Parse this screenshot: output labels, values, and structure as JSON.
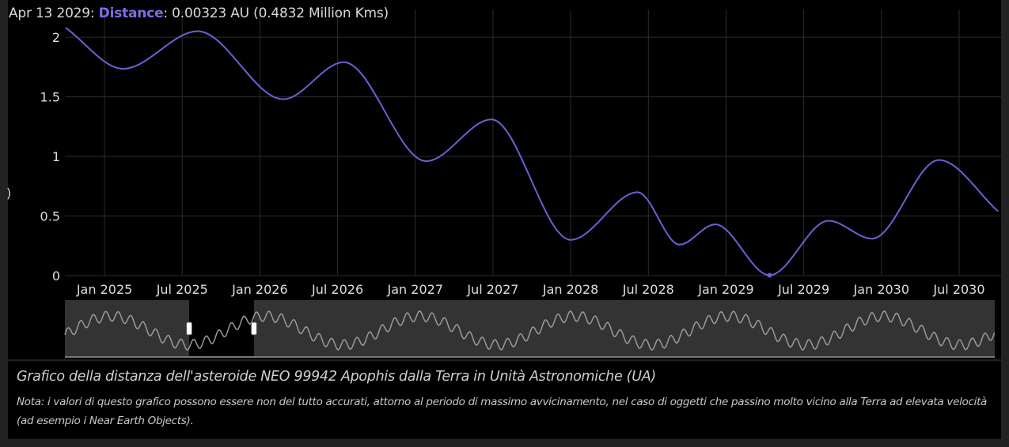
{
  "tooltip": {
    "date": "Apr 13 2029",
    "series_name": "Distance",
    "value_text": ": 0.00323 AU (0.4832 Million Kms)"
  },
  "caption": {
    "title": "Grafico della distanza dell'asteroide NEO 99942 Apophis dalla Terra in Unità Astronomiche (UA)",
    "note": "Nota: i valori di questo grafico possono essere non del tutto accurati, attorno al periodo di massimo avvicinamento, nel caso di oggetti che passino molto vicino alla Terra ad elevata velocità (ad esempio i Near Earth Objects)."
  },
  "colors": {
    "line": "#6f5fd0",
    "navigator_line": "#9a9a9a",
    "grid": "#2c2c2c"
  },
  "chart_data": {
    "type": "line",
    "title": "",
    "xlabel": "",
    "ylabel": ")",
    "xlim": [
      2024.745,
      2030.77
    ],
    "ylim": [
      0,
      2.1
    ],
    "grid": true,
    "yticks": [
      0,
      0.5,
      1,
      1.5,
      2
    ],
    "ytick_labels": [
      "0",
      "0.5",
      "1",
      "1.5",
      "2"
    ],
    "xticks": [
      2025.0,
      2025.5,
      2026.0,
      2026.5,
      2027.0,
      2027.5,
      2028.0,
      2028.5,
      2029.0,
      2029.5,
      2030.0,
      2030.5
    ],
    "xtick_labels": [
      "Jan 2025",
      "Jul 2025",
      "Jan 2026",
      "Jul 2026",
      "Jan 2027",
      "Jul 2027",
      "Jan 2028",
      "Jul 2028",
      "Jan 2029",
      "Jul 2029",
      "Jan 2030",
      "Jul 2030"
    ],
    "series": [
      {
        "name": "Distance",
        "x": [
          2024.75,
          2025.12,
          2025.6,
          2026.15,
          2026.54,
          2027.07,
          2027.49,
          2028.0,
          2028.43,
          2028.7,
          2028.93,
          2029.28,
          2029.66,
          2029.94,
          2030.37,
          2030.75
        ],
        "y": [
          2.08,
          1.735,
          2.05,
          1.48,
          1.79,
          0.96,
          1.31,
          0.3,
          0.7,
          0.26,
          0.43,
          0.00323,
          0.46,
          0.31,
          0.97,
          0.54
        ]
      }
    ],
    "navigator": {
      "selected_range": [
        2025.55,
        2025.97
      ]
    }
  }
}
